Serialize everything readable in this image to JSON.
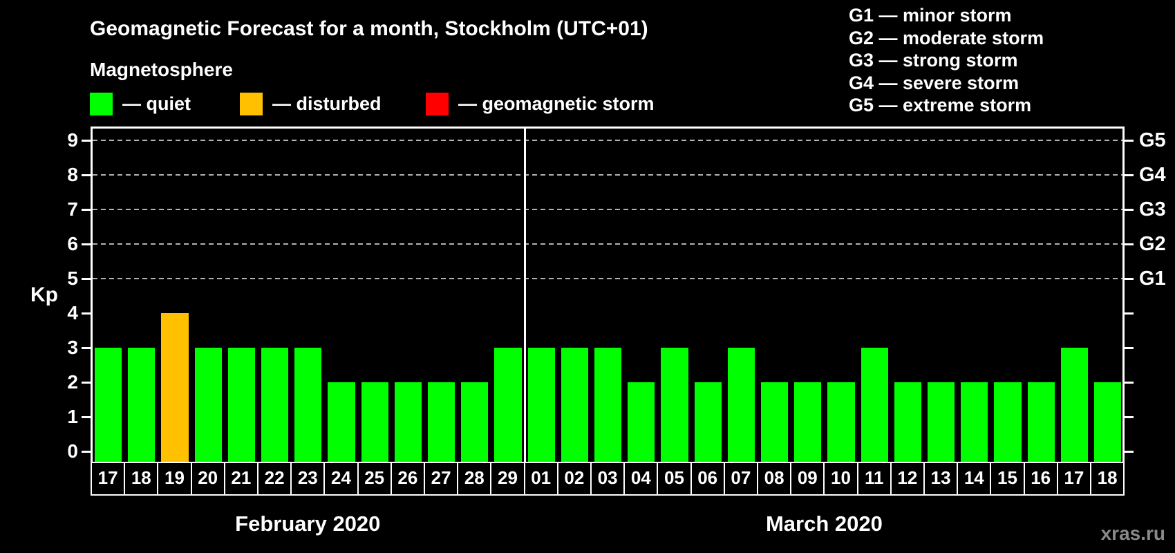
{
  "header": {
    "title": "Geomagnetic Forecast for a month, Stockholm (UTC+01)",
    "subtitle": "Magnetosphere"
  },
  "legend": {
    "items": [
      {
        "key": "quiet",
        "label": "— quiet",
        "color": "#00ff00"
      },
      {
        "key": "disturbed",
        "label": "— disturbed",
        "color": "#ffc000"
      },
      {
        "key": "storm",
        "label": "— geomagnetic storm",
        "color": "#ff0000"
      }
    ]
  },
  "storm_scale_legend": {
    "lines": [
      "G1 — minor storm",
      "G2 — moderate storm",
      "G3 — strong storm",
      "G4 — severe storm",
      "G5 — extreme storm"
    ]
  },
  "watermark": "xras.ru",
  "colors": {
    "background": "#000000",
    "axis": "#ffffff",
    "gridline": "#b3b3b3",
    "quiet": "#00ff00",
    "disturbed": "#ffc000",
    "storm": "#ff0000",
    "watermark": "#8a8a8a"
  },
  "chart_data": {
    "type": "bar",
    "ylabel": "Kp",
    "ylim": [
      0,
      9.4
    ],
    "yticks": [
      0,
      1,
      2,
      3,
      4,
      5,
      6,
      7,
      8,
      9
    ],
    "gridlines_at": [
      5,
      6,
      7,
      8,
      9
    ],
    "grid": "dashed horizontal lines at Kp 5-9",
    "legend_position": "top",
    "right_axis": {
      "5": "G1",
      "6": "G2",
      "7": "G3",
      "8": "G4",
      "9": "G5"
    },
    "status_colors": {
      "quiet": "#00ff00",
      "disturbed": "#ffc000",
      "storm": "#ff0000"
    },
    "groups": [
      {
        "label": "February 2020",
        "categories": [
          "17",
          "18",
          "19",
          "20",
          "21",
          "22",
          "23",
          "24",
          "25",
          "26",
          "27",
          "28",
          "29"
        ],
        "values": [
          3,
          3,
          4,
          3,
          3,
          3,
          3,
          2,
          2,
          2,
          2,
          2,
          3
        ],
        "statuses": [
          "quiet",
          "quiet",
          "disturbed",
          "quiet",
          "quiet",
          "quiet",
          "quiet",
          "quiet",
          "quiet",
          "quiet",
          "quiet",
          "quiet",
          "quiet"
        ]
      },
      {
        "label": "March 2020",
        "categories": [
          "01",
          "02",
          "03",
          "04",
          "05",
          "06",
          "07",
          "08",
          "09",
          "10",
          "11",
          "12",
          "13",
          "14",
          "15",
          "16",
          "17",
          "18"
        ],
        "values": [
          3,
          3,
          3,
          2,
          3,
          2,
          3,
          2,
          2,
          2,
          3,
          2,
          2,
          2,
          2,
          2,
          3,
          2
        ],
        "statuses": [
          "quiet",
          "quiet",
          "quiet",
          "quiet",
          "quiet",
          "quiet",
          "quiet",
          "quiet",
          "quiet",
          "quiet",
          "quiet",
          "quiet",
          "quiet",
          "quiet",
          "quiet",
          "quiet",
          "quiet",
          "quiet"
        ]
      }
    ]
  }
}
